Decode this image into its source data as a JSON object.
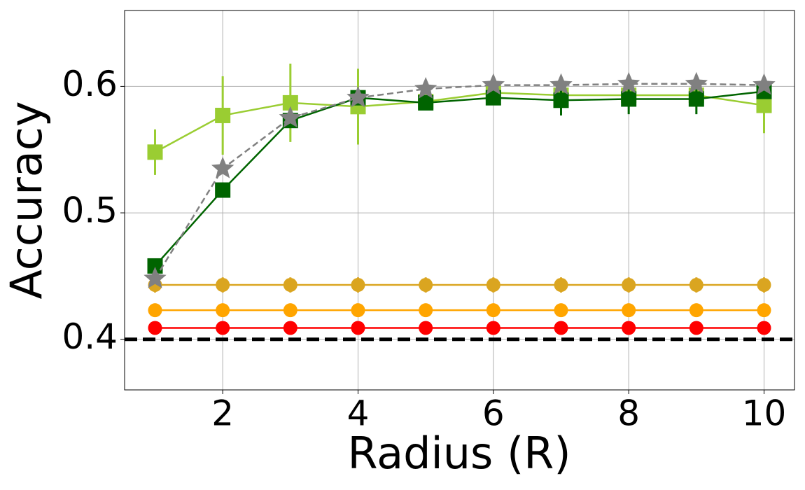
{
  "chart_data": {
    "type": "line",
    "x_label": "Radius (R)",
    "y_label": "Accuracy",
    "x": [
      1,
      2,
      3,
      4,
      5,
      6,
      7,
      8,
      9,
      10
    ],
    "xlim": [
      0.55,
      10.45
    ],
    "xticks": [
      2,
      4,
      6,
      8,
      10
    ],
    "ylim": [
      0.36,
      0.66
    ],
    "yticks": [
      0.4,
      0.5,
      0.6
    ],
    "grid": true,
    "reference_line": {
      "value": 0.4,
      "color": "#000000"
    },
    "series": [
      {
        "color": "#ff0000",
        "marker": "circle",
        "linestyle": "solid",
        "values": [
          0.409,
          0.409,
          0.409,
          0.409,
          0.409,
          0.409,
          0.409,
          0.409,
          0.409,
          0.409
        ],
        "errors": [
          0.003,
          0.003,
          0.003,
          0.003,
          0.003,
          0.003,
          0.003,
          0.003,
          0.003,
          0.003
        ]
      },
      {
        "color": "#ffa500",
        "marker": "circle",
        "linestyle": "solid",
        "values": [
          0.423,
          0.423,
          0.423,
          0.423,
          0.423,
          0.423,
          0.423,
          0.423,
          0.423,
          0.423
        ],
        "errors": [
          0.004,
          0.004,
          0.004,
          0.004,
          0.004,
          0.004,
          0.004,
          0.004,
          0.004,
          0.004
        ]
      },
      {
        "color": "#daa520",
        "marker": "circle",
        "linestyle": "solid",
        "values": [
          0.443,
          0.443,
          0.443,
          0.443,
          0.443,
          0.443,
          0.443,
          0.443,
          0.443,
          0.443
        ],
        "errors": [
          0.006,
          0.006,
          0.006,
          0.006,
          0.006,
          0.006,
          0.006,
          0.006,
          0.006,
          0.006
        ]
      },
      {
        "color": "#9acd32",
        "marker": "square",
        "linestyle": "solid",
        "values": [
          0.548,
          0.577,
          0.587,
          0.584,
          0.588,
          0.595,
          0.593,
          0.593,
          0.593,
          0.585
        ],
        "errors": [
          0.018,
          0.031,
          0.031,
          0.03,
          0.003,
          0.008,
          0.003,
          0.003,
          0.003,
          0.022
        ]
      },
      {
        "color": "#006400",
        "marker": "square",
        "linestyle": "solid",
        "values": [
          0.458,
          0.518,
          0.573,
          0.591,
          0.587,
          0.591,
          0.589,
          0.59,
          0.59,
          0.596
        ],
        "errors": [
          0.006,
          0.006,
          0.004,
          0.005,
          0.005,
          0.004,
          0.012,
          0.012,
          0.012,
          0.004
        ]
      },
      {
        "color": "#808080",
        "marker": "star",
        "linestyle": "dashed",
        "values": [
          0.448,
          0.535,
          0.575,
          0.591,
          0.598,
          0.601,
          0.601,
          0.602,
          0.602,
          0.601
        ]
      }
    ]
  }
}
